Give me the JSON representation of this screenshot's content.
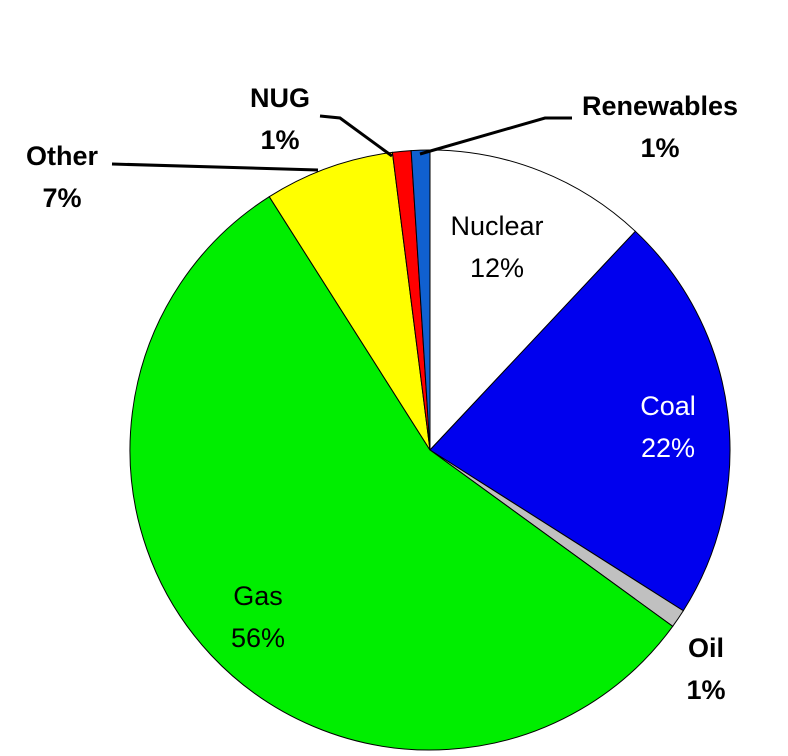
{
  "chart_data": {
    "type": "pie",
    "categories": [
      "Nuclear",
      "Coal",
      "Oil",
      "Gas",
      "Other",
      "NUG",
      "Renewables"
    ],
    "values": [
      12,
      22,
      1,
      56,
      7,
      1,
      1
    ],
    "value_labels": [
      "12%",
      "22%",
      "1%",
      "56%",
      "7%",
      "1%",
      "1%"
    ],
    "colors": [
      "#ffffff",
      "#0000ee",
      "#c0c0c0",
      "#00ee00",
      "#ffff00",
      "#ff0000",
      "#1060d0"
    ]
  }
}
